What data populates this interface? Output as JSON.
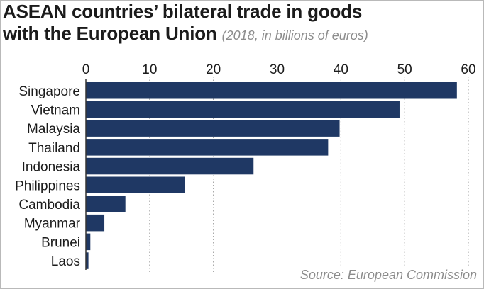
{
  "chart_data": {
    "type": "bar",
    "orientation": "horizontal",
    "title_line1": "ASEAN countries’ bilateral trade in goods",
    "title_line2": "with the European Union",
    "subtitle": "(2018, in billions of euros)",
    "categories": [
      "Singapore",
      "Vietnam",
      "Malaysia",
      "Thailand",
      "Indonesia",
      "Philippines",
      "Cambodia",
      "Myanmar",
      "Brunei",
      "Laos"
    ],
    "values": [
      58.2,
      49.2,
      39.8,
      38.0,
      26.3,
      15.5,
      6.2,
      2.9,
      0.7,
      0.4
    ],
    "xlim": [
      0,
      60
    ],
    "xticks": [
      0,
      10,
      20,
      30,
      40,
      50,
      60
    ],
    "grid": "vertical dotted",
    "bar_color": "#1f3864",
    "source": "Source: European Commission"
  }
}
